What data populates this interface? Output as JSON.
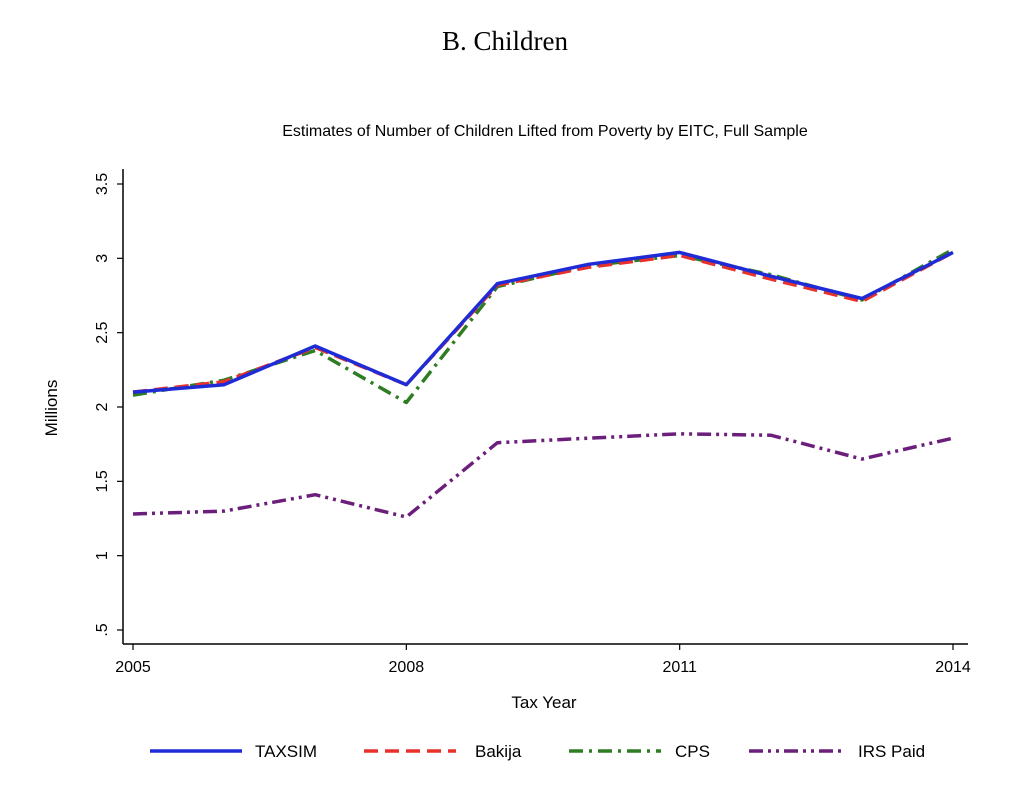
{
  "panel_title": "B. Children",
  "chart_data": {
    "type": "line",
    "title": "Estimates of Number of Children Lifted from Poverty by EITC, Full Sample",
    "xlabel": "Tax Year",
    "ylabel": "Millions",
    "x": [
      2005,
      2006,
      2007,
      2008,
      2009,
      2010,
      2011,
      2012,
      2013,
      2014
    ],
    "xlim": [
      2005,
      2014
    ],
    "ylim": [
      0.5,
      3.5
    ],
    "xticks": [
      2005,
      2008,
      2011,
      2014
    ],
    "xtick_labels": [
      "2005",
      "2008",
      "2011",
      "2014"
    ],
    "yticks": [
      0.5,
      1,
      1.5,
      2,
      2.5,
      3,
      3.5
    ],
    "ytick_labels": [
      ".5",
      "1",
      "1.5",
      "2",
      "2.5",
      "3",
      "3.5"
    ],
    "grid": false,
    "legend_position": "bottom",
    "series": [
      {
        "name": "TAXSIM",
        "color": "#1f2bd6",
        "style": "solid",
        "values": [
          2.1,
          2.15,
          2.41,
          2.15,
          2.83,
          2.96,
          3.04,
          2.88,
          2.73,
          3.04
        ]
      },
      {
        "name": "Bakija",
        "color": "#e8312a",
        "style": "dash",
        "values": [
          2.1,
          2.17,
          2.4,
          2.15,
          2.82,
          2.94,
          3.02,
          2.86,
          2.71,
          3.04
        ]
      },
      {
        "name": "CPS",
        "color": "#2f7d22",
        "style": "dashdot",
        "values": [
          2.08,
          2.18,
          2.38,
          2.03,
          2.81,
          2.95,
          3.02,
          2.89,
          2.72,
          3.06
        ]
      },
      {
        "name": "IRS Paid",
        "color": "#6b1f7a",
        "style": "dashdotdot",
        "values": [
          1.28,
          1.3,
          1.41,
          1.26,
          1.76,
          1.79,
          1.82,
          1.81,
          1.65,
          1.79
        ]
      }
    ]
  }
}
